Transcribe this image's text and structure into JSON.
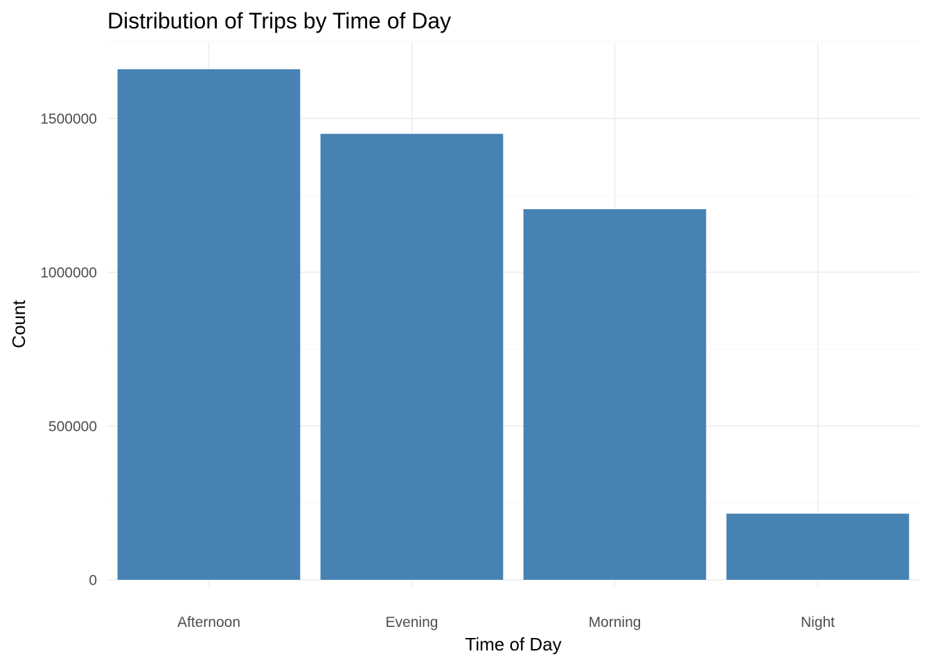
{
  "chart_data": {
    "type": "bar",
    "title": "Distribution of Trips by Time of Day",
    "xlabel": "Time of Day",
    "ylabel": "Count",
    "categories": [
      "Afternoon",
      "Evening",
      "Morning",
      "Night"
    ],
    "values": [
      1660000,
      1450000,
      1205000,
      215000
    ],
    "ylim": [
      0,
      1750000
    ],
    "yticks": [
      0,
      500000,
      1000000,
      1500000
    ],
    "ytick_labels": [
      "0",
      "500000",
      "1000000",
      "1500000"
    ],
    "grid": true,
    "legend": "none",
    "colors": {
      "bar": "#4682b4",
      "grid": "#ebebeb",
      "tick_text": "#4d4d4d",
      "background": "#ffffff"
    }
  }
}
